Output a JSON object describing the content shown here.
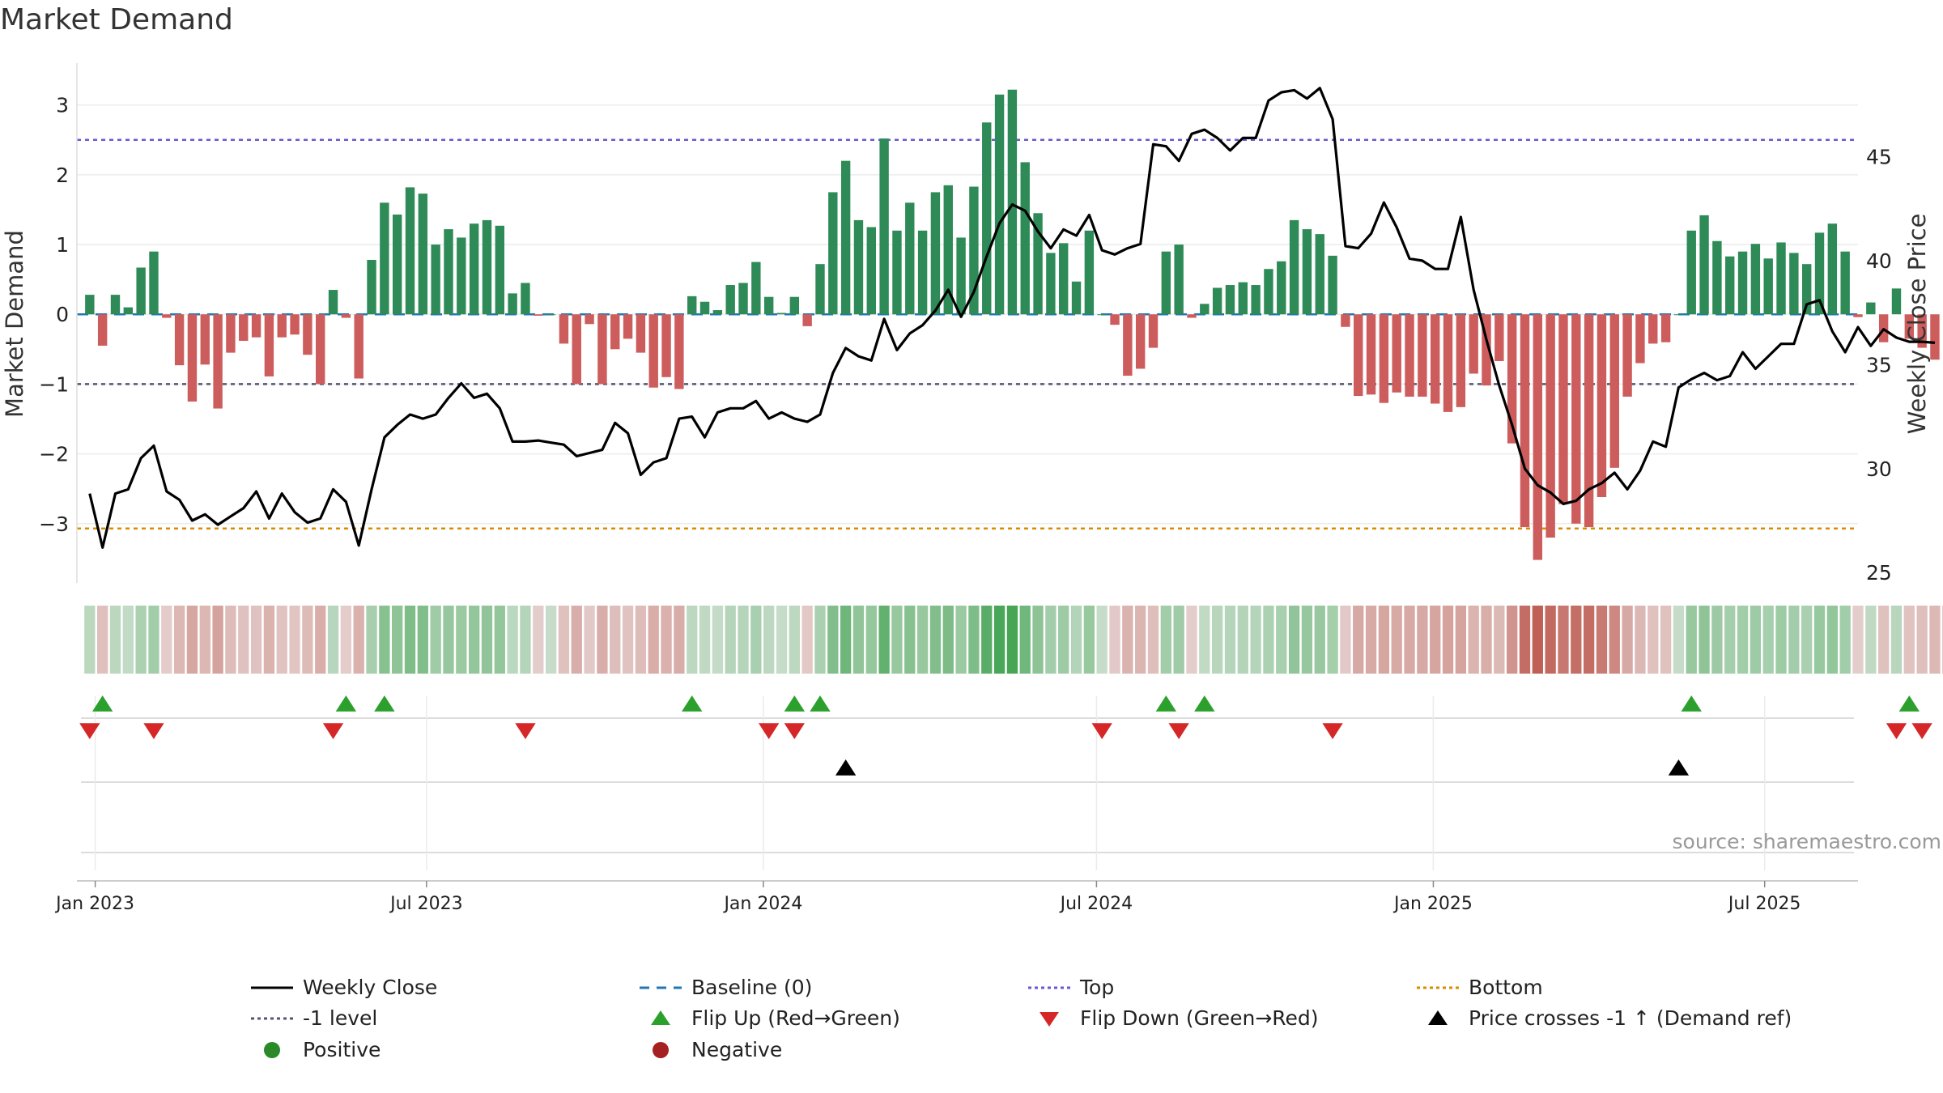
{
  "title": "Market Demand",
  "source": "source: sharemaestro.com",
  "colors": {
    "positive": "#2e8b57",
    "negative": "#cd5c5c",
    "price": "#000000",
    "baseline": "#1f77b4",
    "top": "#6a5acd",
    "minus_one": "#555577",
    "bottom": "#d98c00",
    "flip_up": "#2ca02c",
    "flip_down": "#d62728",
    "cross": "#000000"
  },
  "chart_data": {
    "type": "bar",
    "title": "Market Demand",
    "ylabel": "Market Demand",
    "ylabel_right": "Weekly Close Price",
    "ylim": [
      -3.85,
      3.6
    ],
    "ylim_right": [
      24.5,
      49.5
    ],
    "yticks": [
      3,
      2,
      1,
      0,
      -1,
      -2,
      -3
    ],
    "yticks_right": [
      45,
      40,
      35,
      30,
      25
    ],
    "thresholds": {
      "top": 2.5,
      "minus_one": -1,
      "bottom": -3.07,
      "baseline": 0
    },
    "x_start": "2022-12-26",
    "x_step_days": 7,
    "xlim_days": [
      -4,
      969
    ],
    "xticks": [
      {
        "label": "Jan 2023",
        "day": 6
      },
      {
        "label": "Jul 2023",
        "day": 187
      },
      {
        "label": "Jan 2024",
        "day": 371
      },
      {
        "label": "Jul 2024",
        "day": 553
      },
      {
        "label": "Jan 2025",
        "day": 737
      },
      {
        "label": "Jul 2025",
        "day": 918
      }
    ],
    "demand": [
      0.28,
      -0.45,
      0.28,
      0.1,
      0.67,
      0.9,
      -0.05,
      -0.73,
      -1.25,
      -0.72,
      -1.35,
      -0.55,
      -0.38,
      -0.33,
      -0.89,
      -0.33,
      -0.29,
      -0.58,
      -1.0,
      0.35,
      -0.05,
      -0.92,
      0.78,
      1.6,
      1.43,
      1.82,
      1.73,
      1.0,
      1.22,
      1.1,
      1.3,
      1.35,
      1.27,
      0.3,
      0.45,
      -0.02,
      0.0,
      -0.42,
      -1.0,
      -0.14,
      -1.0,
      -0.5,
      -0.35,
      -0.55,
      -1.05,
      -0.9,
      -1.07,
      0.26,
      0.18,
      0.06,
      0.42,
      0.45,
      0.75,
      0.25,
      0.02,
      0.25,
      -0.17,
      0.72,
      1.75,
      2.2,
      1.35,
      1.25,
      2.52,
      1.2,
      1.6,
      1.2,
      1.75,
      1.85,
      1.1,
      1.83,
      2.75,
      3.15,
      3.22,
      2.18,
      1.45,
      0.88,
      1.02,
      0.47,
      1.2,
      0.0,
      -0.15,
      -0.88,
      -0.78,
      -0.48,
      0.9,
      1.0,
      -0.05,
      0.15,
      0.38,
      0.42,
      0.46,
      0.42,
      0.65,
      0.76,
      1.35,
      1.22,
      1.15,
      0.84,
      -0.18,
      -1.17,
      -1.15,
      -1.27,
      -1.12,
      -1.18,
      -1.18,
      -1.28,
      -1.4,
      -1.33,
      -0.85,
      -1.02,
      -0.67,
      -1.85,
      -3.05,
      -3.52,
      -3.2,
      -2.72,
      -3.0,
      -3.05,
      -2.62,
      -2.2,
      -1.18,
      -0.7,
      -0.42,
      -0.4,
      0.0,
      1.2,
      1.42,
      1.05,
      0.83,
      0.9,
      1.01,
      0.8,
      1.03,
      0.88,
      0.72,
      1.17,
      1.3,
      0.9,
      -0.04,
      0.17,
      -0.4,
      0.37,
      -0.35,
      -0.48,
      -0.65,
      -0.4
    ],
    "price": [
      28.8,
      26.2,
      28.8,
      29.0,
      30.5,
      31.1,
      28.9,
      28.5,
      27.5,
      27.8,
      27.3,
      27.7,
      28.1,
      28.9,
      27.6,
      28.8,
      27.9,
      27.4,
      27.6,
      29.0,
      28.4,
      26.3,
      29.0,
      31.5,
      32.1,
      32.6,
      32.4,
      32.6,
      33.4,
      34.1,
      33.4,
      33.6,
      32.9,
      31.3,
      31.3,
      31.35,
      31.25,
      31.15,
      30.6,
      30.75,
      30.9,
      32.2,
      31.7,
      29.7,
      30.3,
      30.5,
      32.4,
      32.5,
      31.5,
      32.7,
      32.9,
      32.9,
      33.25,
      32.4,
      32.7,
      32.4,
      32.25,
      32.6,
      34.6,
      35.8,
      35.4,
      35.2,
      37.2,
      35.7,
      36.5,
      36.9,
      37.6,
      38.6,
      37.3,
      38.5,
      40.2,
      41.8,
      42.7,
      42.4,
      41.4,
      40.6,
      41.5,
      41.2,
      42.2,
      40.5,
      40.3,
      40.6,
      40.8,
      45.6,
      45.5,
      44.8,
      46.1,
      46.3,
      45.9,
      45.3,
      45.9,
      45.9,
      47.7,
      48.1,
      48.2,
      47.8,
      48.3,
      46.8,
      40.7,
      40.6,
      41.3,
      42.8,
      41.6,
      40.1,
      40.0,
      39.6,
      39.6,
      42.1,
      38.6,
      36.2,
      34.0,
      32.1,
      30.0,
      29.2,
      28.85,
      28.3,
      28.45,
      29.0,
      29.3,
      29.8,
      29.0,
      29.9,
      31.3,
      31.05,
      33.9,
      34.3,
      34.6,
      34.25,
      34.45,
      35.6,
      34.8,
      35.4,
      36.0,
      36.0,
      37.9,
      38.1,
      36.6,
      35.6,
      36.8,
      35.9,
      36.7,
      36.3,
      36.1,
      36.1,
      36.05
    ],
    "flip_up_weeks": [
      1,
      20,
      23,
      47,
      55,
      57,
      84,
      87,
      125,
      142
    ],
    "flip_down_weeks": [
      0,
      5,
      19,
      34,
      53,
      55,
      79,
      85,
      97,
      141,
      143
    ],
    "cross_weeks": [
      59,
      124
    ],
    "legend": [
      {
        "label": "Weekly Close",
        "symbol": "solid"
      },
      {
        "label": "Baseline (0)",
        "symbol": "dash"
      },
      {
        "label": "Top",
        "symbol": "dot-top"
      },
      {
        "label": "Bottom",
        "symbol": "dot-bottom"
      },
      {
        "label": "-1 level",
        "symbol": "dot-minus"
      },
      {
        "label": "Flip Up (Red→Green)",
        "symbol": "tri-up"
      },
      {
        "label": "Flip Down (Green→Red)",
        "symbol": "tri-down"
      },
      {
        "label": "Price crosses -1 ↑ (Demand ref)",
        "symbol": "tri-black"
      },
      {
        "label": "Positive",
        "symbol": "dot-green"
      },
      {
        "label": "Negative",
        "symbol": "dot-red"
      }
    ]
  }
}
